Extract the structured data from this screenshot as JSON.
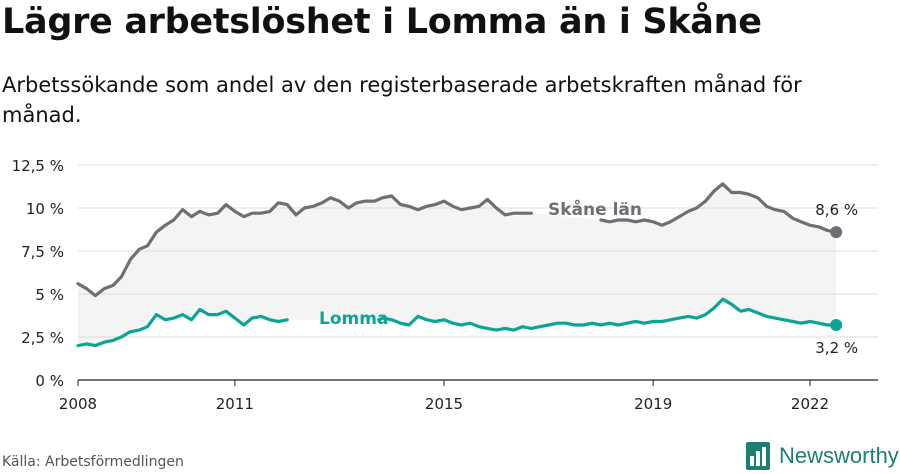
{
  "title": "Lägre arbetslöshet i Lomma än i Skåne",
  "subtitle": "Arbetssökande som andel av den registerbaserade arbetskraften månad för månad.",
  "source": "Källa: Arbetsförmedlingen",
  "brand": "Newsworthy",
  "colors": {
    "skane": "#6f6e74",
    "lomma": "#0aa595",
    "band": "#f4f4f4",
    "grid": "#dddddd",
    "brand": "#1d7f72"
  },
  "chart_data": {
    "type": "line",
    "title": "Lägre arbetslöshet i Lomma än i Skåne",
    "xlabel": "",
    "ylabel": "",
    "xlim": [
      2008,
      2023.3
    ],
    "ylim": [
      0,
      12.5
    ],
    "y_ticks": [
      {
        "value": 0,
        "label": "0 %"
      },
      {
        "value": 2.5,
        "label": "2,5 %"
      },
      {
        "value": 5,
        "label": "5 %"
      },
      {
        "value": 7.5,
        "label": "7,5 %"
      },
      {
        "value": 10,
        "label": "10 %"
      },
      {
        "value": 12.5,
        "label": "12,5 %"
      }
    ],
    "x_ticks": [
      {
        "value": 2008,
        "label": "2008"
      },
      {
        "value": 2011,
        "label": "2011"
      },
      {
        "value": 2015,
        "label": "2015"
      },
      {
        "value": 2019,
        "label": "2019"
      },
      {
        "value": 2022,
        "label": "2022"
      }
    ],
    "grid": true,
    "series": [
      {
        "name": "Skåne län",
        "label": "Skåne län",
        "end_label": "8,6 %",
        "x": [
          2008.0,
          2008.17,
          2008.33,
          2008.5,
          2008.67,
          2008.83,
          2009.0,
          2009.17,
          2009.33,
          2009.5,
          2009.67,
          2009.83,
          2010.0,
          2010.17,
          2010.33,
          2010.5,
          2010.67,
          2010.83,
          2011.0,
          2011.17,
          2011.33,
          2011.5,
          2011.67,
          2011.83,
          2012.0,
          2012.17,
          2012.33,
          2012.5,
          2012.67,
          2012.83,
          2013.0,
          2013.17,
          2013.33,
          2013.5,
          2013.67,
          2013.83,
          2014.0,
          2014.17,
          2014.33,
          2014.5,
          2014.67,
          2014.83,
          2015.0,
          2015.17,
          2015.33,
          2015.5,
          2015.67,
          2015.83,
          2016.0,
          2016.17,
          2016.33,
          2016.5,
          2016.67,
          2018.0,
          2018.17,
          2018.33,
          2018.5,
          2018.67,
          2018.83,
          2019.0,
          2019.17,
          2019.33,
          2019.5,
          2019.67,
          2019.83,
          2020.0,
          2020.17,
          2020.33,
          2020.5,
          2020.67,
          2020.83,
          2021.0,
          2021.17,
          2021.33,
          2021.5,
          2021.67,
          2021.83,
          2022.0,
          2022.17,
          2022.33,
          2022.5
        ],
        "values": [
          5.6,
          5.3,
          4.9,
          5.3,
          5.5,
          6.0,
          7.0,
          7.6,
          7.8,
          8.6,
          9.0,
          9.3,
          9.9,
          9.5,
          9.8,
          9.6,
          9.7,
          10.2,
          9.8,
          9.5,
          9.7,
          9.7,
          9.8,
          10.3,
          10.2,
          9.6,
          10.0,
          10.1,
          10.3,
          10.6,
          10.4,
          10.0,
          10.3,
          10.4,
          10.4,
          10.6,
          10.7,
          10.2,
          10.1,
          9.9,
          10.1,
          10.2,
          10.4,
          10.1,
          9.9,
          10.0,
          10.1,
          10.5,
          10.0,
          9.6,
          9.7,
          9.7,
          9.7,
          9.3,
          9.2,
          9.3,
          9.3,
          9.2,
          9.3,
          9.2,
          9.0,
          9.2,
          9.5,
          9.8,
          10.0,
          10.4,
          11.0,
          11.4,
          10.9,
          10.9,
          10.8,
          10.6,
          10.1,
          9.9,
          9.8,
          9.4,
          9.2,
          9.0,
          8.9,
          8.7,
          8.6
        ]
      },
      {
        "name": "Lomma",
        "label": "Lomma",
        "end_label": "3,2 %",
        "x": [
          2008.0,
          2008.17,
          2008.33,
          2008.5,
          2008.67,
          2008.83,
          2009.0,
          2009.17,
          2009.33,
          2009.5,
          2009.67,
          2009.83,
          2010.0,
          2010.17,
          2010.33,
          2010.5,
          2010.67,
          2010.83,
          2011.0,
          2011.17,
          2011.33,
          2011.5,
          2011.67,
          2011.83,
          2012.0,
          2013.75,
          2013.83,
          2014.0,
          2014.17,
          2014.33,
          2014.5,
          2014.67,
          2014.83,
          2015.0,
          2015.17,
          2015.33,
          2015.5,
          2015.67,
          2015.83,
          2016.0,
          2016.17,
          2016.33,
          2016.5,
          2016.67,
          2016.83,
          2017.0,
          2017.17,
          2017.33,
          2017.5,
          2017.67,
          2017.83,
          2018.0,
          2018.17,
          2018.33,
          2018.5,
          2018.67,
          2018.83,
          2019.0,
          2019.17,
          2019.33,
          2019.5,
          2019.67,
          2019.83,
          2020.0,
          2020.17,
          2020.33,
          2020.5,
          2020.67,
          2020.83,
          2021.0,
          2021.17,
          2021.33,
          2021.5,
          2021.67,
          2021.83,
          2022.0,
          2022.17,
          2022.33,
          2022.5
        ],
        "values": [
          2.0,
          2.1,
          2.0,
          2.2,
          2.3,
          2.5,
          2.8,
          2.9,
          3.1,
          3.8,
          3.5,
          3.6,
          3.8,
          3.5,
          4.1,
          3.8,
          3.8,
          4.0,
          3.6,
          3.2,
          3.6,
          3.7,
          3.5,
          3.4,
          3.5,
          3.5,
          3.6,
          3.5,
          3.3,
          3.2,
          3.7,
          3.5,
          3.4,
          3.5,
          3.3,
          3.2,
          3.3,
          3.1,
          3.0,
          2.9,
          3.0,
          2.9,
          3.1,
          3.0,
          3.1,
          3.2,
          3.3,
          3.3,
          3.2,
          3.2,
          3.3,
          3.2,
          3.3,
          3.2,
          3.3,
          3.4,
          3.3,
          3.4,
          3.4,
          3.5,
          3.6,
          3.7,
          3.6,
          3.8,
          4.2,
          4.7,
          4.4,
          4.0,
          4.1,
          3.9,
          3.7,
          3.6,
          3.5,
          3.4,
          3.3,
          3.4,
          3.3,
          3.2,
          3.2
        ]
      }
    ]
  }
}
